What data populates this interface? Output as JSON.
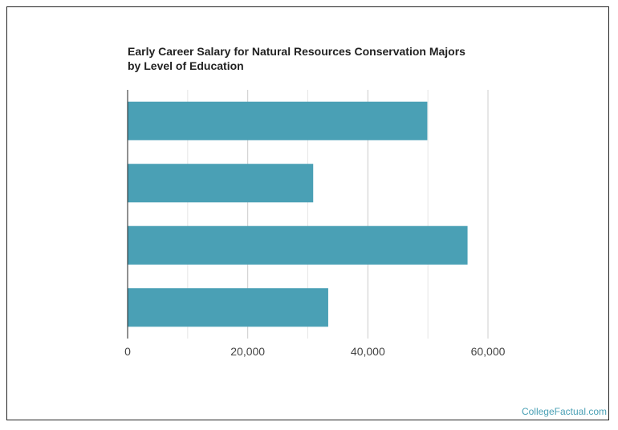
{
  "title": "Early Career Salary for Natural Resources Conservation Majors by Level of Education",
  "credit": "CollegeFactual.com",
  "chart_data": {
    "type": "bar",
    "orientation": "horizontal",
    "title": "Early Career Salary for Natural Resources Conservation Majors by Level of Education",
    "xlabel": "",
    "ylabel": "",
    "categories": [
      "",
      "",
      "",
      ""
    ],
    "values": [
      49900,
      30900,
      56600,
      33400
    ],
    "xlim": [
      0,
      60000
    ],
    "xticks": [
      0,
      20000,
      40000,
      60000
    ],
    "xtick_labels": [
      "0",
      "20,000",
      "40,000",
      "60,000"
    ],
    "grid": true,
    "bar_color": "#4aa0b5",
    "grid_color": "#dddddd"
  }
}
